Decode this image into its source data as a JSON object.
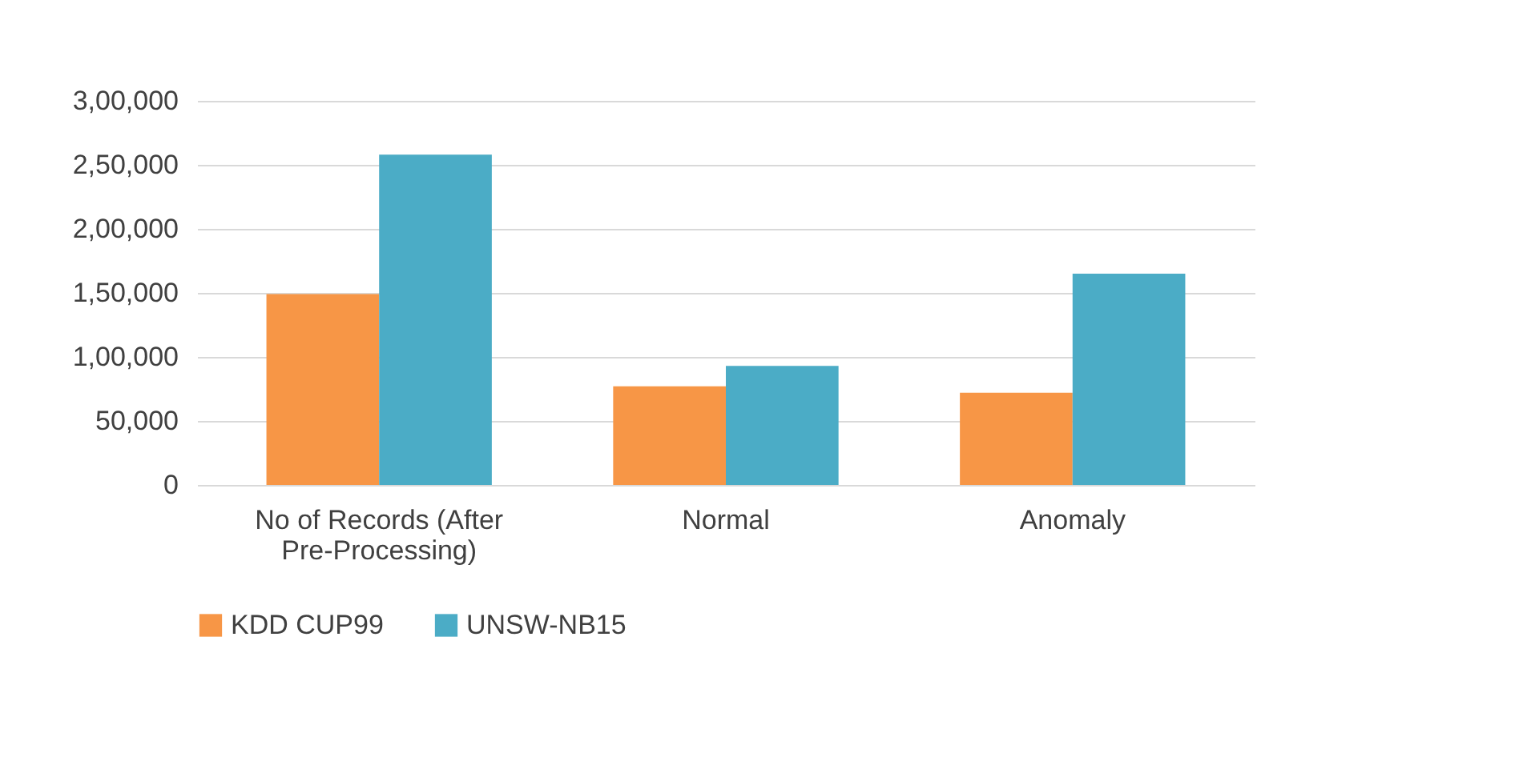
{
  "chart_data": {
    "type": "bar",
    "categories": [
      "No of Records (After Pre-Processing)",
      "Normal",
      "Anomaly"
    ],
    "series": [
      {
        "name": "KDD CUP99",
        "color": "#f79646",
        "values": [
          149000,
          77000,
          72000
        ]
      },
      {
        "name": "UNSW-NB15",
        "color": "#4bacc6",
        "values": [
          258000,
          93000,
          165000
        ]
      }
    ],
    "ylim": [
      0,
      300000
    ],
    "yticks": [
      {
        "value": 0,
        "label": "0"
      },
      {
        "value": 50000,
        "label": "50,000"
      },
      {
        "value": 100000,
        "label": "1,00,000"
      },
      {
        "value": 150000,
        "label": "1,50,000"
      },
      {
        "value": 200000,
        "label": "2,00,000"
      },
      {
        "value": 250000,
        "label": "2,50,000"
      },
      {
        "value": 300000,
        "label": "3,00,000"
      }
    ],
    "grid": true,
    "legend": "bottom"
  }
}
